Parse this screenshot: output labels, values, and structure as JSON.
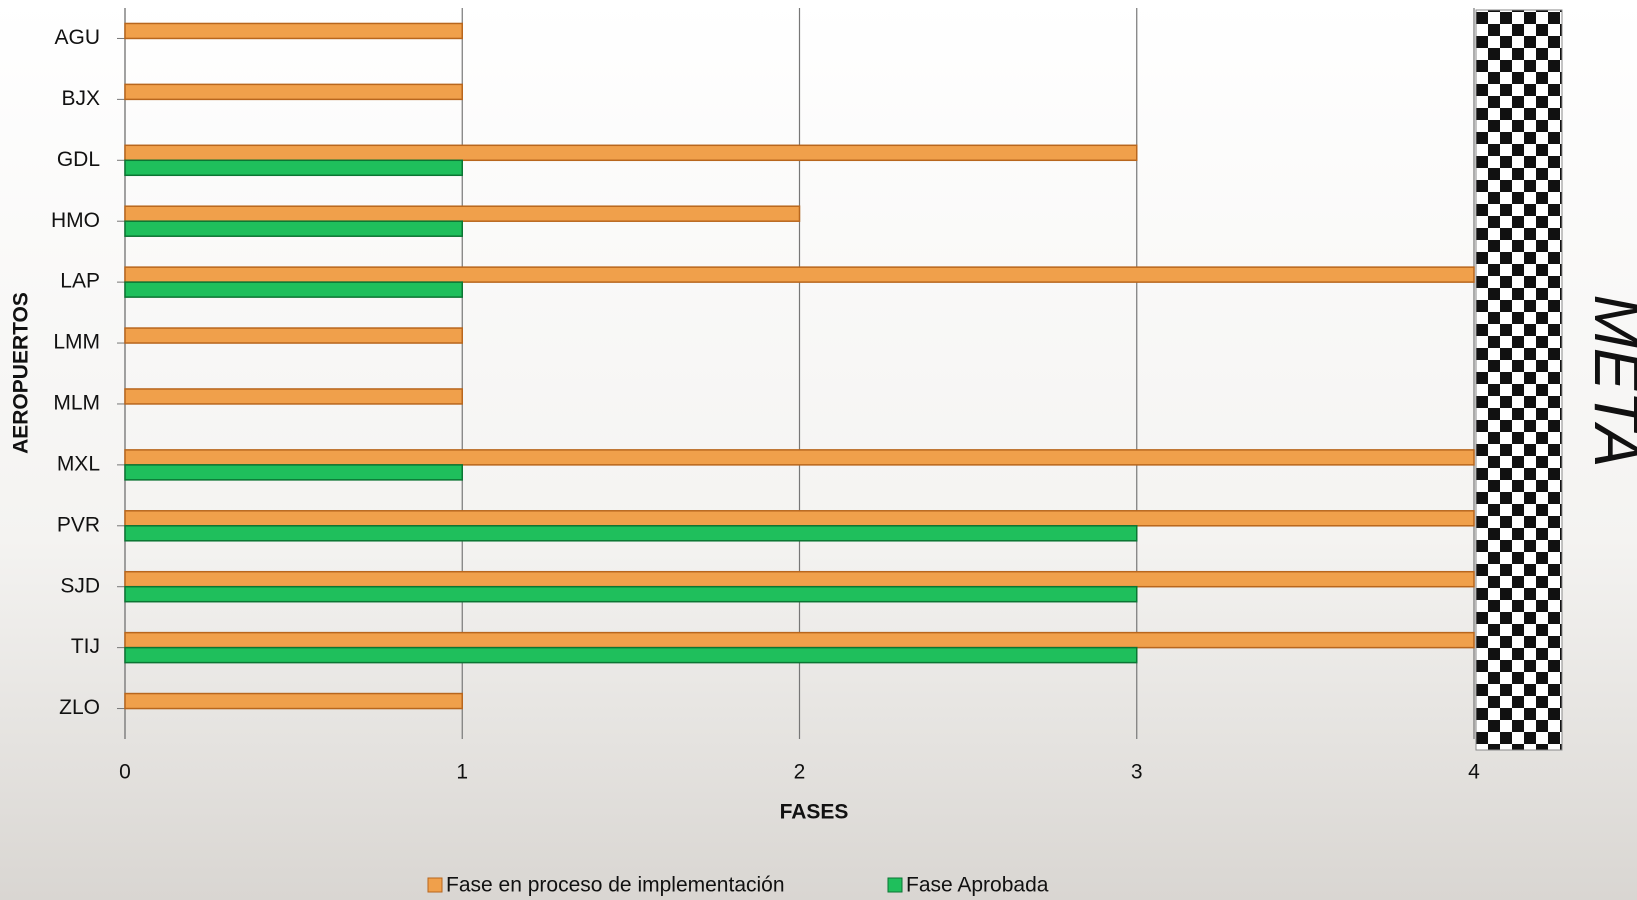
{
  "chart_data": {
    "type": "bar",
    "orientation": "horizontal",
    "categories": [
      "AGU",
      "BJX",
      "GDL",
      "HMO",
      "LAP",
      "LMM",
      "MLM",
      "MXL",
      "PVR",
      "SJD",
      "TIJ",
      "ZLO"
    ],
    "series": [
      {
        "name": "Fase en proceso de implementación",
        "color": "#f0a04b",
        "values": [
          1,
          1,
          3,
          2,
          4,
          1,
          1,
          4,
          4,
          4,
          4,
          1
        ]
      },
      {
        "name": "Fase Aprobada",
        "color": "#1fbf5c",
        "values": [
          null,
          null,
          1,
          1,
          1,
          null,
          null,
          1,
          3,
          3,
          3,
          null
        ]
      }
    ],
    "xlim": [
      0,
      4
    ],
    "xticks": [
      0,
      1,
      2,
      3,
      4
    ],
    "grid": true,
    "xlabel": "FASES",
    "ylabel": "AEROPUERTOS",
    "annotation": "META"
  }
}
